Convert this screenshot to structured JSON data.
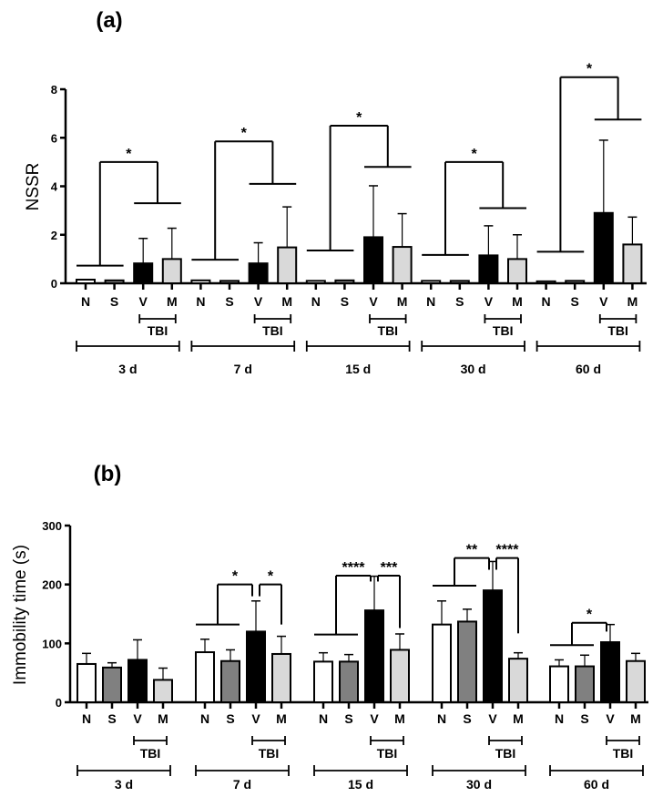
{
  "colors": {
    "N": "#ffffff",
    "S": "#808080",
    "V": "#000000",
    "M": "#d9d9d9",
    "axis": "#000000"
  },
  "chart_data": [
    {
      "type": "bar",
      "panel_label": "(a)",
      "ylabel": "NSSR",
      "ylim": [
        0,
        8
      ],
      "yticks": [
        "0",
        "2",
        "4",
        "6",
        "8"
      ],
      "yticks_values": [
        0,
        2,
        4,
        6,
        8
      ],
      "group_labels": [
        "N",
        "S",
        "V",
        "M"
      ],
      "subgroup_label": "TBI",
      "time_points": [
        "3 d",
        "7 d",
        "15 d",
        "30 d",
        "60 d"
      ],
      "series": [
        {
          "name": "N",
          "values": [
            0.15,
            0.12,
            0.1,
            0.1,
            0.08
          ],
          "err_top": [
            null,
            null,
            null,
            null,
            null
          ]
        },
        {
          "name": "S",
          "values": [
            0.12,
            0.1,
            0.12,
            0.1,
            0.1
          ],
          "err_top": [
            null,
            null,
            null,
            null,
            null
          ]
        },
        {
          "name": "V",
          "values": [
            0.82,
            0.82,
            1.9,
            1.15,
            2.9
          ],
          "err_top": [
            1.85,
            1.67,
            4.02,
            2.37,
            5.9
          ]
        },
        {
          "name": "M",
          "values": [
            1.0,
            1.48,
            1.5,
            1.0,
            1.6
          ],
          "err_top": [
            2.27,
            3.15,
            2.87,
            2.0,
            2.73
          ]
        }
      ],
      "significance": [
        [
          {
            "from": "N+S",
            "to": "V+M",
            "h_from": 0.73,
            "h_top": 5.0,
            "h_to": 3.3,
            "label": "*"
          }
        ],
        [
          {
            "from": "N+S",
            "to": "V+M",
            "h_from": 0.97,
            "h_top": 5.85,
            "h_to": 4.1,
            "label": "*"
          }
        ],
        [
          {
            "from": "N+S",
            "to": "V+M",
            "h_from": 1.35,
            "h_top": 6.5,
            "h_to": 4.8,
            "label": "*"
          }
        ],
        [
          {
            "from": "N+S",
            "to": "V+M",
            "h_from": 1.17,
            "h_top": 5.0,
            "h_to": 3.1,
            "label": "*"
          }
        ],
        [
          {
            "from": "N+S",
            "to": "V+M",
            "h_from": 1.3,
            "h_top": 8.5,
            "h_to": 6.75,
            "label": "*"
          }
        ]
      ]
    },
    {
      "type": "bar",
      "panel_label": "(b)",
      "ylabel": "Immobility time (s)",
      "ylim": [
        0,
        300
      ],
      "yticks": [
        "0",
        "100",
        "200",
        "300"
      ],
      "yticks_values": [
        0,
        100,
        200,
        300
      ],
      "group_labels": [
        "N",
        "S",
        "V",
        "M"
      ],
      "subgroup_label": "TBI",
      "time_points": [
        "3 d",
        "7 d",
        "15 d",
        "30 d",
        "60 d"
      ],
      "series": [
        {
          "name": "N",
          "values": [
            65,
            85,
            69,
            132,
            61
          ],
          "err_top": [
            83,
            107,
            84,
            172,
            72
          ]
        },
        {
          "name": "S",
          "values": [
            59,
            70,
            69,
            137,
            61
          ],
          "err_top": [
            67,
            89,
            81,
            158,
            80
          ]
        },
        {
          "name": "V",
          "values": [
            72,
            120,
            156,
            190,
            102
          ],
          "err_top": [
            106,
            172,
            214,
            239,
            132
          ]
        },
        {
          "name": "M",
          "values": [
            38,
            82,
            89,
            74,
            70
          ],
          "err_top": [
            58,
            112,
            116,
            84,
            83
          ]
        }
      ],
      "significance": [
        [],
        [
          {
            "from": "N+S",
            "to": "V",
            "h_from": 132,
            "h_top": 200,
            "h_to": 180,
            "label": "*"
          },
          {
            "from": "V",
            "to": "M",
            "h_from": 180,
            "h_top": 200,
            "h_to": 132,
            "label": "*"
          }
        ],
        [
          {
            "from": "N+S",
            "to": "V",
            "h_from": 115,
            "h_top": 215,
            "h_to": 205,
            "label": "****"
          },
          {
            "from": "V",
            "to": "M",
            "h_from": 205,
            "h_top": 215,
            "h_to": 126,
            "label": "***"
          }
        ],
        [
          {
            "from": "N+S",
            "to": "V",
            "h_from": 198,
            "h_top": 245,
            "h_to": 225,
            "label": "**"
          },
          {
            "from": "V",
            "to": "M",
            "h_from": 225,
            "h_top": 245,
            "h_to": 117,
            "label": "****"
          }
        ],
        [
          {
            "from": "N+S",
            "to": "V",
            "h_from": 97,
            "h_top": 135,
            "h_to": 120,
            "label": "*"
          }
        ]
      ]
    }
  ]
}
